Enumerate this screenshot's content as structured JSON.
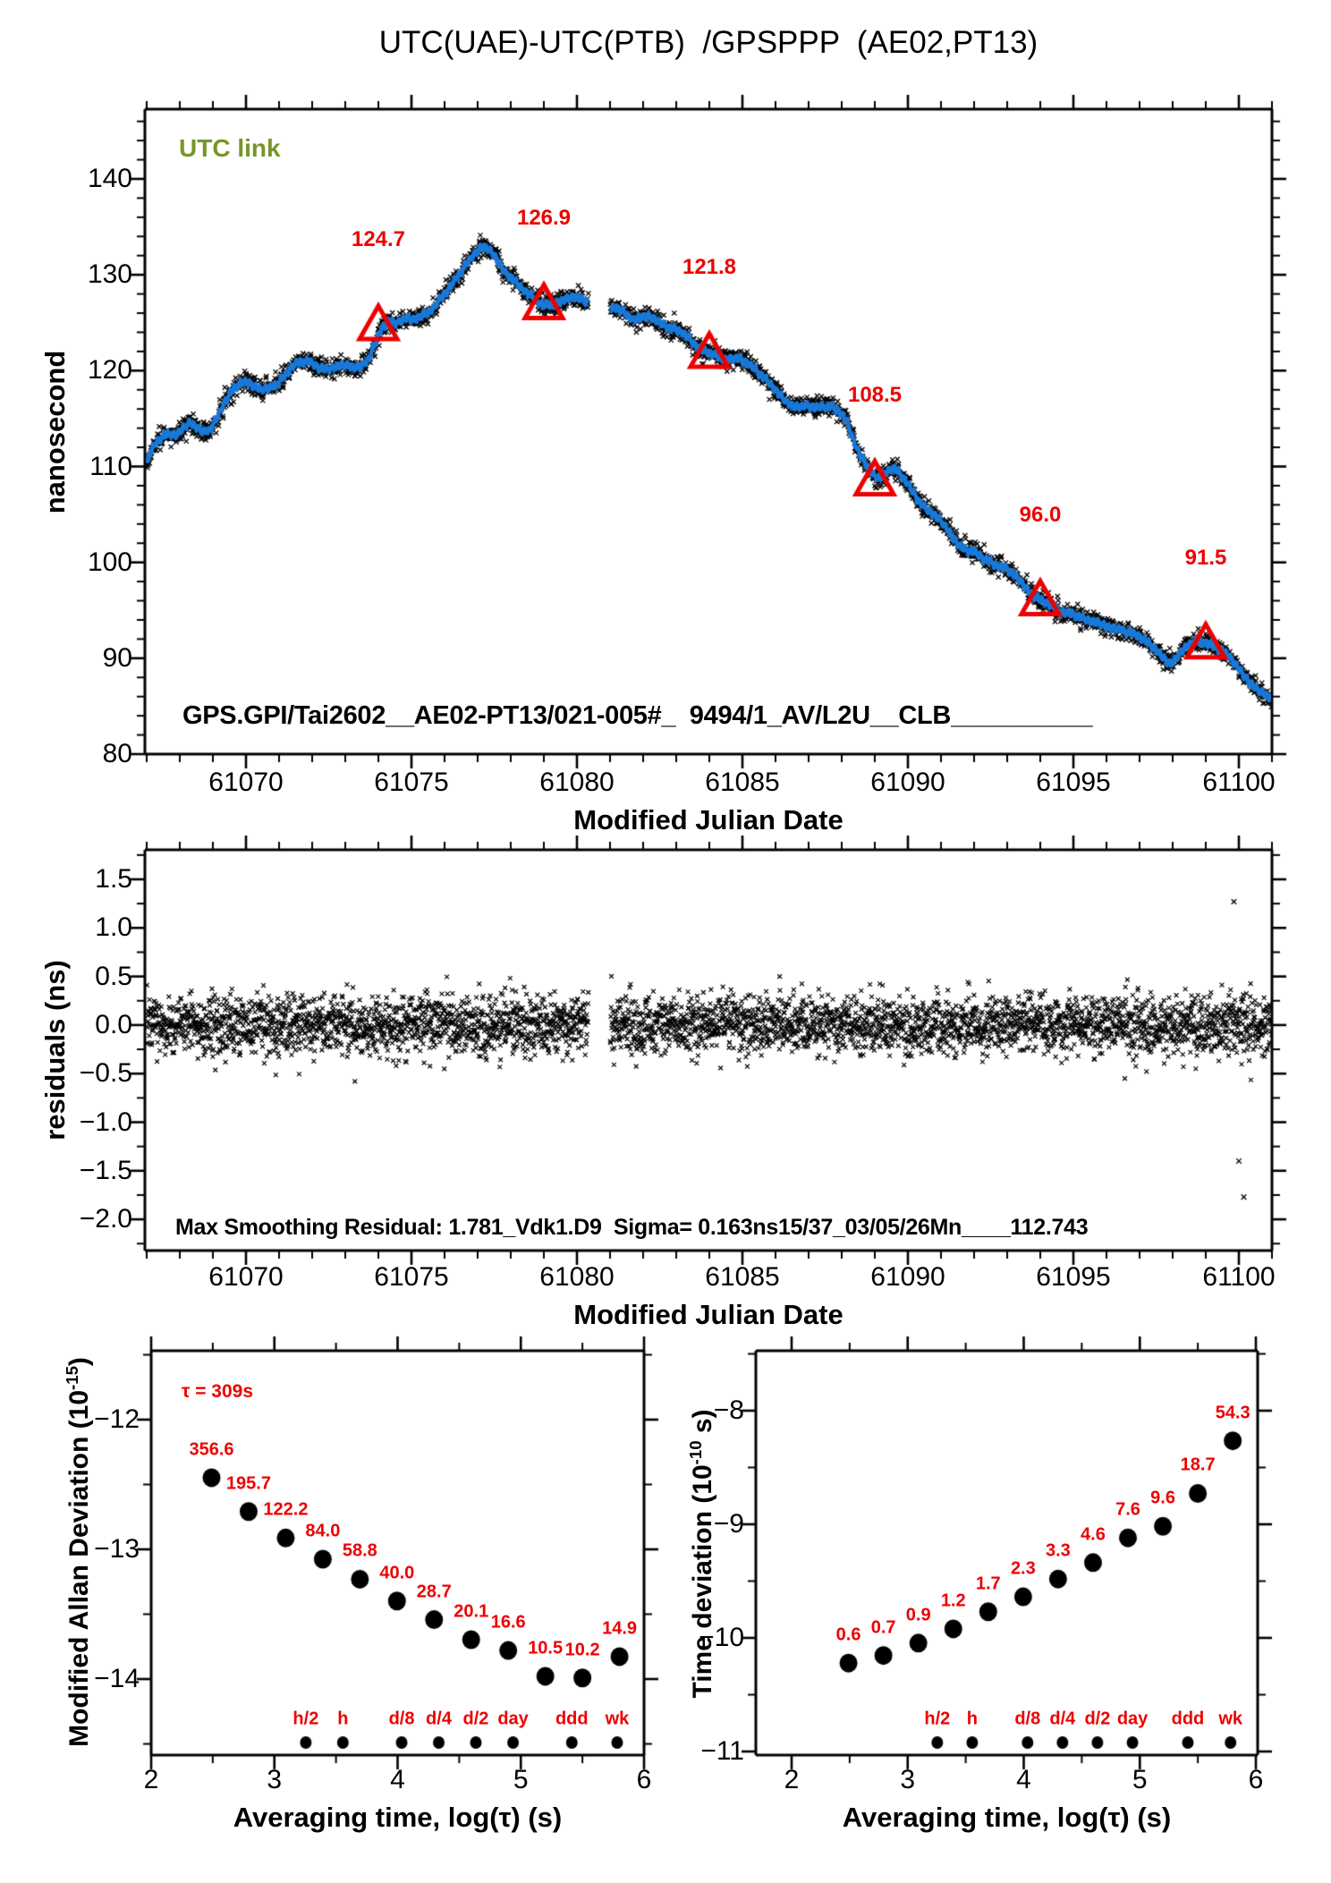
{
  "title": "UTC(UAE)-UTC(PTB)  /GPSPPP  (AE02,PT13)",
  "colors": {
    "line": "#1878d8",
    "accent": "#ee0000",
    "utc_link": "#76952a",
    "ink": "#000000"
  },
  "chart_data": [
    {
      "id": "utc-link-timeseries",
      "type": "line",
      "corner_label": "UTC link",
      "xlabel": "Modified Julian Date",
      "ylabel": "nanosecond",
      "xlim": [
        61066.95,
        61101.0
      ],
      "ylim": [
        79.8,
        147.3
      ],
      "xticks": {
        "values": [
          61070,
          61075,
          61080,
          61085,
          61090,
          61095,
          61100
        ],
        "labels": [
          "61070",
          "61075",
          "61080",
          "61085",
          "61090",
          "61095",
          "61100"
        ],
        "minor_step": 1
      },
      "yticks": {
        "values": [
          140,
          130,
          120,
          110,
          100,
          90,
          80
        ],
        "labels": [
          "140",
          "130",
          "120",
          "110",
          "100",
          "90",
          "80"
        ],
        "minor_step": 2
      },
      "gap_x": [
        61080.35,
        61081.0
      ],
      "inline_text": "GPS.GPI/Tai2602__AE02-PT13/021-005#_  9494/1_AV/L2U__CLB__________",
      "calibration_points": [
        {
          "x": 61074,
          "y": 124.7,
          "label": "124.7"
        },
        {
          "x": 61079,
          "y": 126.9,
          "label": "126.9"
        },
        {
          "x": 61084,
          "y": 121.8,
          "label": "121.8"
        },
        {
          "x": 61089,
          "y": 108.5,
          "label": "108.5"
        },
        {
          "x": 61094,
          "y": 96.0,
          "label": "96.0"
        },
        {
          "x": 61099,
          "y": 91.5,
          "label": "91.5"
        }
      ],
      "series": {
        "name": "UTC link smoothed",
        "anchors": [
          [
            61067.0,
            110.3
          ],
          [
            61067.15,
            111.8
          ],
          [
            61067.3,
            112.6
          ],
          [
            61067.5,
            113.2
          ],
          [
            61067.7,
            113.4
          ],
          [
            61067.9,
            113.3
          ],
          [
            61068.1,
            114.0
          ],
          [
            61068.3,
            114.6
          ],
          [
            61068.5,
            114.1
          ],
          [
            61068.7,
            113.6
          ],
          [
            61068.9,
            113.8
          ],
          [
            61069.1,
            114.9
          ],
          [
            61069.35,
            116.7
          ],
          [
            61069.6,
            118.0
          ],
          [
            61069.8,
            118.7
          ],
          [
            61070.0,
            118.8
          ],
          [
            61070.2,
            118.5
          ],
          [
            61070.45,
            118.0
          ],
          [
            61070.7,
            118.2
          ],
          [
            61070.95,
            118.6
          ],
          [
            61071.2,
            119.6
          ],
          [
            61071.45,
            120.6
          ],
          [
            61071.7,
            121.0
          ],
          [
            61071.95,
            120.9
          ],
          [
            61072.2,
            120.3
          ],
          [
            61072.45,
            120.1
          ],
          [
            61072.7,
            120.4
          ],
          [
            61072.95,
            120.6
          ],
          [
            61073.2,
            120.4
          ],
          [
            61073.45,
            120.3
          ],
          [
            61073.7,
            121.2
          ],
          [
            61073.9,
            122.8
          ],
          [
            61074.1,
            124.5
          ],
          [
            61074.35,
            125.1
          ],
          [
            61074.6,
            125.0
          ],
          [
            61074.85,
            125.5
          ],
          [
            61075.1,
            125.3
          ],
          [
            61075.35,
            125.8
          ],
          [
            61075.6,
            126.3
          ],
          [
            61075.85,
            127.4
          ],
          [
            61076.1,
            128.4
          ],
          [
            61076.35,
            129.6
          ],
          [
            61076.6,
            130.8
          ],
          [
            61076.85,
            132.0
          ],
          [
            61077.05,
            132.7
          ],
          [
            61077.25,
            132.9
          ],
          [
            61077.45,
            132.3
          ],
          [
            61077.65,
            131.2
          ],
          [
            61077.85,
            130.1
          ],
          [
            61078.05,
            129.6
          ],
          [
            61078.3,
            128.7
          ],
          [
            61078.55,
            128.0
          ],
          [
            61078.8,
            127.2
          ],
          [
            61079.0,
            126.8
          ],
          [
            61079.25,
            126.9
          ],
          [
            61079.5,
            127.2
          ],
          [
            61079.75,
            127.6
          ],
          [
            61080.0,
            127.7
          ],
          [
            61080.2,
            127.3
          ],
          [
            61080.35,
            127.1
          ],
          [
            61081.0,
            126.4
          ],
          [
            61081.2,
            126.6
          ],
          [
            61081.45,
            126.0
          ],
          [
            61081.7,
            125.3
          ],
          [
            61081.95,
            125.6
          ],
          [
            61082.2,
            125.7
          ],
          [
            61082.45,
            125.1
          ],
          [
            61082.7,
            124.6
          ],
          [
            61082.95,
            124.3
          ],
          [
            61083.2,
            124.0
          ],
          [
            61083.45,
            123.1
          ],
          [
            61083.7,
            122.3
          ],
          [
            61083.95,
            121.9
          ],
          [
            61084.2,
            121.6
          ],
          [
            61084.45,
            121.1
          ],
          [
            61084.7,
            121.3
          ],
          [
            61084.95,
            121.2
          ],
          [
            61085.2,
            120.7
          ],
          [
            61085.45,
            119.9
          ],
          [
            61085.7,
            119.1
          ],
          [
            61085.95,
            118.2
          ],
          [
            61086.2,
            117.2
          ],
          [
            61086.45,
            116.4
          ],
          [
            61086.7,
            116.2
          ],
          [
            61086.95,
            116.4
          ],
          [
            61087.2,
            116.1
          ],
          [
            61087.45,
            116.3
          ],
          [
            61087.7,
            116.2
          ],
          [
            61087.95,
            115.7
          ],
          [
            61088.15,
            114.8
          ],
          [
            61088.35,
            112.8
          ],
          [
            61088.55,
            111.2
          ],
          [
            61088.75,
            110.1
          ],
          [
            61088.95,
            109.1
          ],
          [
            61089.15,
            108.8
          ],
          [
            61089.35,
            109.4
          ],
          [
            61089.55,
            109.9
          ],
          [
            61089.75,
            109.3
          ],
          [
            61090.0,
            108.2
          ],
          [
            61090.25,
            106.8
          ],
          [
            61090.5,
            105.7
          ],
          [
            61090.75,
            105.1
          ],
          [
            61091.0,
            104.3
          ],
          [
            61091.25,
            103.2
          ],
          [
            61091.5,
            101.9
          ],
          [
            61091.75,
            101.3
          ],
          [
            61092.0,
            101.1
          ],
          [
            61092.25,
            100.5
          ],
          [
            61092.5,
            100.0
          ],
          [
            61092.75,
            99.6
          ],
          [
            61093.0,
            99.3
          ],
          [
            61093.25,
            98.6
          ],
          [
            61093.5,
            97.6
          ],
          [
            61093.75,
            96.6
          ],
          [
            61094.0,
            96.1
          ],
          [
            61094.25,
            95.7
          ],
          [
            61094.5,
            95.1
          ],
          [
            61094.75,
            94.7
          ],
          [
            61095.0,
            94.6
          ],
          [
            61095.25,
            94.2
          ],
          [
            61095.5,
            93.9
          ],
          [
            61095.75,
            93.7
          ],
          [
            61096.0,
            93.3
          ],
          [
            61096.25,
            93.1
          ],
          [
            61096.5,
            92.9
          ],
          [
            61096.75,
            92.6
          ],
          [
            61097.0,
            92.3
          ],
          [
            61097.25,
            91.6
          ],
          [
            61097.5,
            90.9
          ],
          [
            61097.75,
            89.9
          ],
          [
            61097.95,
            89.4
          ],
          [
            61098.15,
            90.2
          ],
          [
            61098.4,
            91.2
          ],
          [
            61098.65,
            91.8
          ],
          [
            61098.9,
            91.7
          ],
          [
            61099.15,
            91.4
          ],
          [
            61099.4,
            91.0
          ],
          [
            61099.65,
            90.4
          ],
          [
            61099.9,
            89.4
          ],
          [
            61100.1,
            88.4
          ],
          [
            61100.35,
            87.4
          ],
          [
            61100.6,
            86.6
          ],
          [
            61100.85,
            86.1
          ],
          [
            61101.0,
            85.9
          ]
        ]
      }
    },
    {
      "id": "residuals",
      "type": "scatter",
      "xlabel": "Modified Julian Date",
      "ylabel": "residuals (ns)",
      "xlim": [
        61066.95,
        61101.0
      ],
      "ylim": [
        -2.32,
        1.8
      ],
      "xticks": {
        "values": [
          61070,
          61075,
          61080,
          61085,
          61090,
          61095,
          61100
        ],
        "labels": [
          "61070",
          "61075",
          "61080",
          "61085",
          "61090",
          "61095",
          "61100"
        ],
        "minor_step": 1
      },
      "yticks": {
        "values": [
          1.5,
          1.0,
          0.5,
          0.0,
          -0.5,
          -1.0,
          -1.5,
          -2.0
        ],
        "labels": [
          "1.5",
          "1.0",
          "0.5",
          "0.0",
          "−0.5",
          "−1.0",
          "−1.5",
          "−2.0"
        ],
        "minor_step": 0.25
      },
      "gap_x": [
        61080.35,
        61081.0
      ],
      "scatter_sigma_ns": 0.155,
      "outliers": [
        [
          61099.85,
          1.27
        ],
        [
          61100.0,
          -1.4
        ],
        [
          61100.15,
          -1.77
        ]
      ],
      "stats_text": "Max Smoothing Residual: 1.781_Vdk1.D9  Sigma= 0.163ns15/37_03/05/26Mn____112.743"
    },
    {
      "id": "mdev",
      "type": "scatter",
      "annotation": "τ = 309s",
      "xlabel": "Averaging time, log(τ) (s)",
      "ylabel_parts": {
        "prefix": "Modified Allan Deviation (10",
        "sup": "-15",
        "suffix": ")"
      },
      "xlim": [
        2.0,
        6.0
      ],
      "ylim": [
        -14.59,
        -11.45
      ],
      "xticks": {
        "values": [
          2,
          3,
          4,
          5,
          6
        ],
        "labels": [
          "2",
          "3",
          "4",
          "5",
          "6"
        ],
        "minor_step": 0.5
      },
      "yticks": {
        "values": [
          -12,
          -13,
          -14
        ],
        "labels": [
          "−12",
          "−13",
          "−14"
        ],
        "minor_step": 0.5
      },
      "points": [
        {
          "log_tau": 2.49,
          "value": 356.6,
          "label": "356.6"
        },
        {
          "log_tau": 2.791,
          "value": 195.7,
          "label": "195.7"
        },
        {
          "log_tau": 3.092,
          "value": 122.2,
          "label": "122.2"
        },
        {
          "log_tau": 3.393,
          "value": 84.0,
          "label": "84.0"
        },
        {
          "log_tau": 3.694,
          "value": 58.8,
          "label": "58.8"
        },
        {
          "log_tau": 3.995,
          "value": 40.0,
          "label": "40.0"
        },
        {
          "log_tau": 4.296,
          "value": 28.7,
          "label": "28.7"
        },
        {
          "log_tau": 4.597,
          "value": 20.1,
          "label": "20.1"
        },
        {
          "log_tau": 4.898,
          "value": 16.6,
          "label": "16.6"
        },
        {
          "log_tau": 5.199,
          "value": 10.5,
          "label": "10.5"
        },
        {
          "log_tau": 5.5,
          "value": 10.2,
          "label": "10.2"
        },
        {
          "log_tau": 5.801,
          "value": 14.9,
          "label": "14.9"
        }
      ],
      "time_tags": [
        {
          "log_tau": 3.255,
          "label": "h/2"
        },
        {
          "log_tau": 3.556,
          "label": "h"
        },
        {
          "log_tau": 4.033,
          "label": "d/8"
        },
        {
          "log_tau": 4.334,
          "label": "d/4"
        },
        {
          "log_tau": 4.635,
          "label": "d/2"
        },
        {
          "log_tau": 4.937,
          "label": "day"
        },
        {
          "log_tau": 5.414,
          "label": "ddd"
        },
        {
          "log_tau": 5.782,
          "label": "wk"
        }
      ]
    },
    {
      "id": "tdev",
      "type": "scatter",
      "xlabel": "Averaging time, log(τ) (s)",
      "ylabel_parts": {
        "prefix": "Time deviation (10",
        "sup": "-10",
        "suffix": " s)"
      },
      "xlim": [
        1.69,
        6.02
      ],
      "ylim": [
        -11.03,
        -7.49
      ],
      "xticks": {
        "values": [
          2,
          3,
          4,
          5,
          6
        ],
        "labels": [
          "2",
          "3",
          "4",
          "5",
          "6"
        ],
        "minor_step": 0.5
      },
      "yticks": {
        "values": [
          -8,
          -9,
          -10,
          -11
        ],
        "labels": [
          "−8",
          "−9",
          "−10",
          "−11"
        ],
        "minor_step": 0.5
      },
      "points": [
        {
          "log_tau": 2.49,
          "value": 0.6,
          "label": "0.6"
        },
        {
          "log_tau": 2.791,
          "value": 0.7,
          "label": "0.7"
        },
        {
          "log_tau": 3.092,
          "value": 0.9,
          "label": "0.9"
        },
        {
          "log_tau": 3.393,
          "value": 1.2,
          "label": "1.2"
        },
        {
          "log_tau": 3.694,
          "value": 1.7,
          "label": "1.7"
        },
        {
          "log_tau": 3.995,
          "value": 2.3,
          "label": "2.3"
        },
        {
          "log_tau": 4.296,
          "value": 3.3,
          "label": "3.3"
        },
        {
          "log_tau": 4.597,
          "value": 4.6,
          "label": "4.6"
        },
        {
          "log_tau": 4.898,
          "value": 7.6,
          "label": "7.6"
        },
        {
          "log_tau": 5.199,
          "value": 9.6,
          "label": "9.6"
        },
        {
          "log_tau": 5.5,
          "value": 18.7,
          "label": "18.7"
        },
        {
          "log_tau": 5.801,
          "value": 54.3,
          "label": "54.3"
        }
      ],
      "time_tags": [
        {
          "log_tau": 3.255,
          "label": "h/2"
        },
        {
          "log_tau": 3.556,
          "label": "h"
        },
        {
          "log_tau": 4.033,
          "label": "d/8"
        },
        {
          "log_tau": 4.334,
          "label": "d/4"
        },
        {
          "log_tau": 4.635,
          "label": "d/2"
        },
        {
          "log_tau": 4.937,
          "label": "day"
        },
        {
          "log_tau": 5.414,
          "label": "ddd"
        },
        {
          "log_tau": 5.782,
          "label": "wk"
        }
      ]
    }
  ]
}
